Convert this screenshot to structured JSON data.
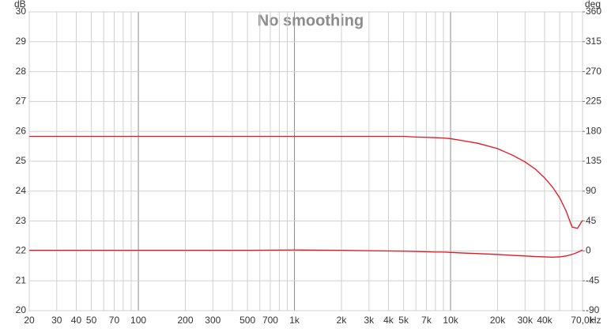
{
  "chart_data": {
    "type": "line",
    "title": "No smoothing",
    "ylabel": "dB",
    "y2label": "deg",
    "xlabel": "Hz",
    "xscale": "log",
    "grid": true,
    "xlim": [
      20,
      70000
    ],
    "ylim": [
      20,
      30
    ],
    "y2lim": [
      -90,
      360
    ],
    "xticks": [
      20,
      30,
      40,
      50,
      70,
      100,
      200,
      300,
      500,
      700,
      {
        "value": 1000,
        "label": "1k"
      },
      {
        "value": 2000,
        "label": "2k"
      },
      {
        "value": 3000,
        "label": "3k"
      },
      {
        "value": 4000,
        "label": "4k"
      },
      {
        "value": 5000,
        "label": "5k"
      },
      {
        "value": 7000,
        "label": "7k"
      },
      {
        "value": 10000,
        "label": "10k"
      },
      {
        "value": 20000,
        "label": "20k"
      },
      {
        "value": 30000,
        "label": "30k"
      },
      {
        "value": 40000,
        "label": "40k"
      },
      {
        "value": 70000,
        "label": "70,0k"
      }
    ],
    "x_minor_ticks": [
      60,
      80,
      90,
      400,
      600,
      800,
      900,
      6000,
      8000,
      9000,
      50000,
      60000
    ],
    "yticks": [
      20,
      21,
      22,
      23,
      24,
      25,
      26,
      27,
      28,
      29,
      30
    ],
    "y2ticks": [
      -90,
      -45,
      0,
      45,
      90,
      135,
      180,
      225,
      270,
      315,
      360
    ],
    "x": [
      20,
      50,
      100,
      200,
      500,
      1000,
      2000,
      5000,
      6000,
      7000,
      8000,
      9000,
      10000,
      12000,
      15000,
      20000,
      25000,
      30000,
      35000,
      40000,
      45000,
      50000,
      55000,
      60000,
      65000,
      70000
    ],
    "series": [
      {
        "color": "#e8141e",
        "axis": "y",
        "values": [
          22.02,
          22.02,
          22.02,
          22.02,
          22.02,
          22.03,
          22.02,
          21.99,
          21.98,
          21.97,
          21.96,
          21.96,
          21.95,
          21.93,
          21.91,
          21.88,
          21.85,
          21.83,
          21.81,
          21.8,
          21.79,
          21.8,
          21.83,
          21.88,
          21.95,
          22.03
        ]
      },
      {
        "color": "#e8141e",
        "axis": "y2",
        "values": [
          172.5,
          172.5,
          172.5,
          172.5,
          172.5,
          172.5,
          172.5,
          172.5,
          171.5,
          171,
          170.5,
          170,
          169,
          166,
          162,
          154,
          144,
          134,
          123,
          110,
          96,
          80,
          60,
          36,
          34,
          46
        ]
      }
    ]
  }
}
